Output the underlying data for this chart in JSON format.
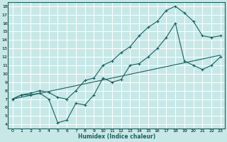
{
  "title": "",
  "xlabel": "Humidex (Indice chaleur)",
  "bg_color": "#c8e8e8",
  "grid_color": "#ffffff",
  "line_color": "#1a6060",
  "xlim": [
    -0.5,
    23.5
  ],
  "ylim": [
    3.5,
    18.5
  ],
  "xticks": [
    0,
    1,
    2,
    3,
    4,
    5,
    6,
    7,
    8,
    9,
    10,
    11,
    12,
    13,
    14,
    15,
    16,
    17,
    18,
    19,
    20,
    21,
    22,
    23
  ],
  "yticks": [
    4,
    5,
    6,
    7,
    8,
    9,
    10,
    11,
    12,
    13,
    14,
    15,
    16,
    17,
    18
  ],
  "line1_x": [
    0,
    1,
    2,
    3,
    4,
    5,
    6,
    7,
    8,
    9,
    10,
    11,
    12,
    13,
    14,
    15,
    16,
    17,
    18,
    19,
    20,
    21,
    22,
    23
  ],
  "line1_y": [
    7.0,
    7.5,
    7.5,
    7.7,
    7.0,
    4.2,
    4.5,
    6.5,
    6.3,
    7.5,
    9.5,
    9.0,
    9.3,
    11.0,
    11.2,
    12.0,
    13.0,
    14.3,
    16.0,
    11.5,
    11.0,
    10.5,
    11.0,
    12.0
  ],
  "line2_x": [
    0,
    1,
    2,
    3,
    4,
    5,
    6,
    7,
    8,
    9,
    10,
    11,
    12,
    13,
    14,
    15,
    16,
    17,
    18,
    19,
    20,
    21,
    22,
    23
  ],
  "line2_y": [
    7.0,
    7.5,
    7.7,
    8.0,
    7.8,
    7.2,
    7.0,
    8.0,
    9.2,
    9.5,
    11.0,
    11.5,
    12.5,
    13.2,
    14.5,
    15.5,
    16.2,
    17.5,
    18.0,
    17.2,
    16.2,
    14.5,
    14.3,
    14.5
  ],
  "line3_x": [
    0,
    23
  ],
  "line3_y": [
    7.0,
    12.2
  ]
}
